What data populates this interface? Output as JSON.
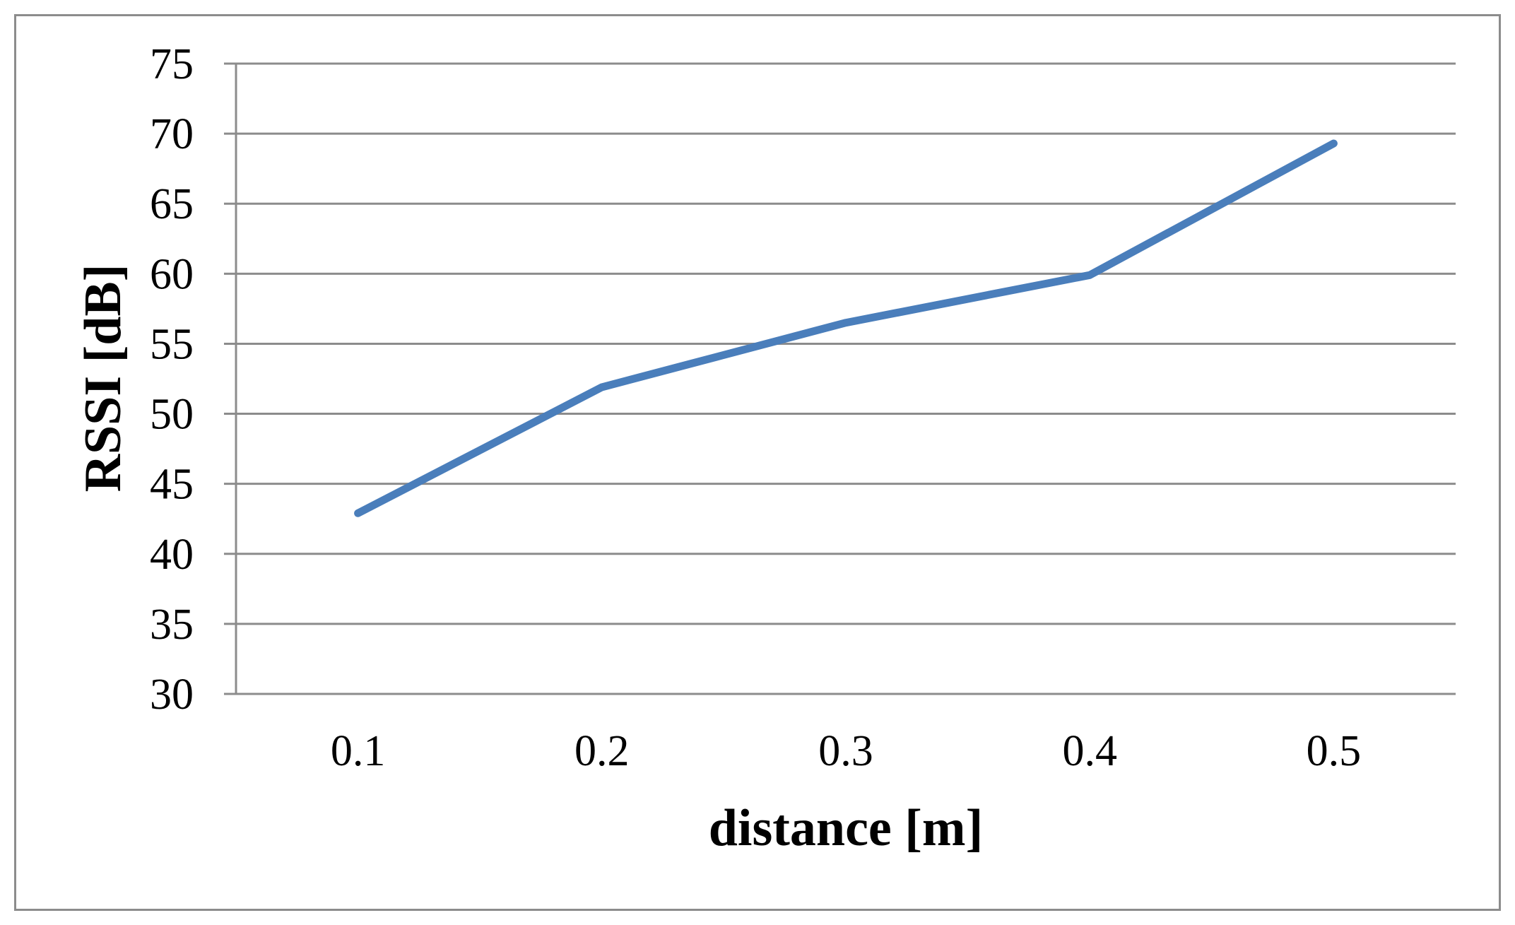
{
  "chart_data": {
    "type": "line",
    "title": "",
    "xlabel": "distance [m]",
    "ylabel": "RSSI [dB]",
    "categories": [
      "0.1",
      "0.2",
      "0.3",
      "0.4",
      "0.5"
    ],
    "series": [
      {
        "values": [
          42.9,
          51.9,
          56.5,
          59.9,
          69.3
        ],
        "color": "#4a7ebb"
      }
    ],
    "ylim": [
      30,
      75
    ],
    "yticks": [
      30,
      35,
      40,
      45,
      50,
      55,
      60,
      65,
      70,
      75
    ],
    "grid": true,
    "legend": "none",
    "colors": {
      "gridline": "#8c8c8c",
      "axis": "#8c8c8c",
      "line": "#4a7ebb",
      "frame": "#8c8c8c"
    }
  }
}
